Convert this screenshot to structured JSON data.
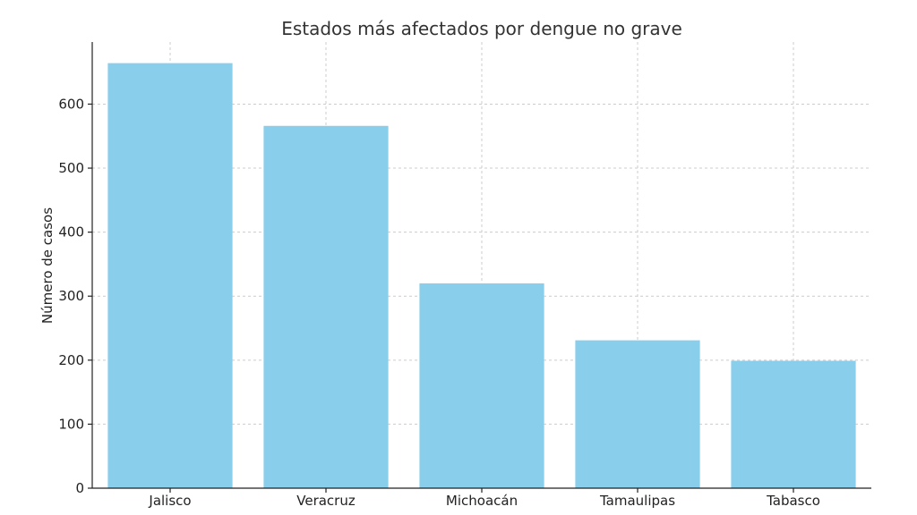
{
  "chart_data": {
    "type": "bar",
    "title": "Estados más afectados por dengue no grave",
    "xlabel": "",
    "ylabel": "Número de casos",
    "categories": [
      "Jalisco",
      "Veracruz",
      "Michoacán",
      "Tamaulipas",
      "Tabasco"
    ],
    "values": [
      664,
      566,
      320,
      231,
      199
    ],
    "ylim": [
      0,
      697
    ],
    "yticks": [
      0,
      100,
      200,
      300,
      400,
      500,
      600
    ],
    "grid": true,
    "bar_color": "#89CFEB"
  }
}
